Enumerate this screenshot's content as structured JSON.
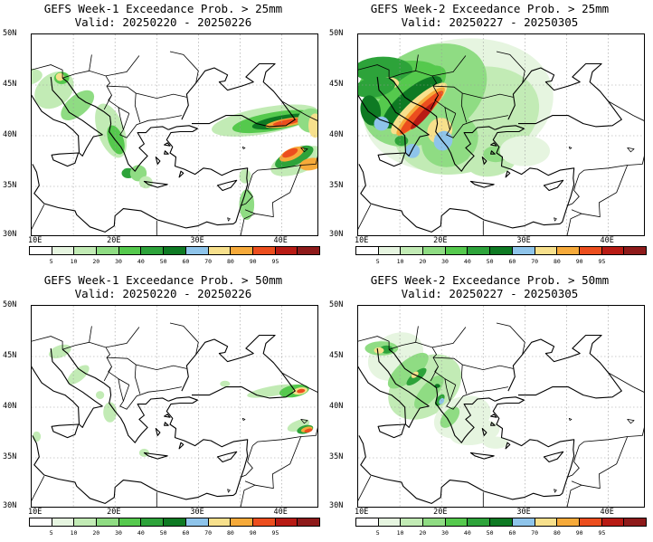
{
  "panels": [
    {
      "title": "GEFS Week-1 Exceedance Prob. > 25mm",
      "valid": "Valid: 20250220 - 20250226",
      "field": "w1_25"
    },
    {
      "title": "GEFS Week-2 Exceedance Prob. > 25mm",
      "valid": "Valid: 20250227 - 20250305",
      "field": "w2_25"
    },
    {
      "title": "GEFS Week-1 Exceedance Prob. > 50mm",
      "valid": "Valid: 20250220 - 20250226",
      "field": "w1_50"
    },
    {
      "title": "GEFS Week-2 Exceedance Prob. > 50mm",
      "valid": "Valid: 20250227 - 20250305",
      "field": "w2_50"
    }
  ],
  "lat_labels": [
    "50N",
    "45N",
    "40N",
    "35N",
    "30N"
  ],
  "lon_labels": [
    "10E",
    "20E",
    "30E",
    "40E"
  ],
  "colorbar": {
    "levels": [
      "5",
      "10",
      "20",
      "30",
      "40",
      "50",
      "60",
      "70",
      "80",
      "90",
      "95"
    ],
    "colors": [
      "#ffffff",
      "#e6f5e0",
      "#c2ebb5",
      "#8fdc83",
      "#55c94d",
      "#2da33a",
      "#0e7a23",
      "#8ec4ea",
      "#f7e08c",
      "#f6aa3a",
      "#ec4e1e",
      "#b81b14",
      "#8e1a1a"
    ]
  }
}
